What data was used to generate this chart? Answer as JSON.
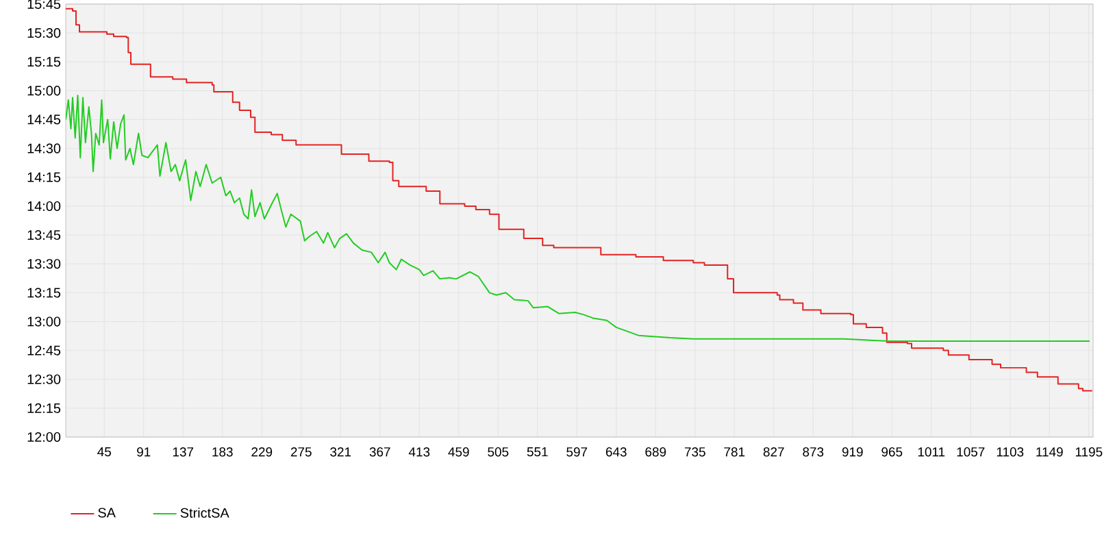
{
  "chart_data": {
    "type": "line",
    "xlim": [
      0,
      1200
    ],
    "ylim": [
      12,
      15.75
    ],
    "xticks": [
      45,
      91,
      137,
      183,
      229,
      275,
      321,
      367,
      413,
      459,
      505,
      551,
      597,
      643,
      689,
      735,
      781,
      827,
      873,
      919,
      965,
      1011,
      1057,
      1103,
      1149,
      1195
    ],
    "yticks": [
      {
        "value": 12,
        "label": "12:00"
      },
      {
        "value": 12.25,
        "label": "12:15"
      },
      {
        "value": 12.5,
        "label": "12:30"
      },
      {
        "value": 12.75,
        "label": "12:45"
      },
      {
        "value": 13,
        "label": "13:00"
      },
      {
        "value": 13.25,
        "label": "13:15"
      },
      {
        "value": 13.5,
        "label": "13:30"
      },
      {
        "value": 13.75,
        "label": "13:45"
      },
      {
        "value": 14,
        "label": "14:00"
      },
      {
        "value": 14.25,
        "label": "14:15"
      },
      {
        "value": 14.5,
        "label": "14:30"
      },
      {
        "value": 14.75,
        "label": "14:45"
      },
      {
        "value": 15,
        "label": "15:00"
      },
      {
        "value": 15.25,
        "label": "15:15"
      },
      {
        "value": 15.5,
        "label": "15:30"
      },
      {
        "value": 15.75,
        "label": "15:45"
      }
    ],
    "grid": true,
    "legend": "bottom left",
    "marker": "none",
    "line_style": "solid",
    "series": [
      {
        "name": "SA",
        "type": "step",
        "color": "#e32222",
        "x": [
          0,
          8,
          12,
          16,
          48,
          56,
          71,
          73,
          76,
          99,
          125,
          141,
          171,
          173,
          195,
          203,
          216,
          221,
          240,
          253,
          269,
          322,
          354,
          378,
          382,
          389,
          421,
          437,
          466,
          479,
          495,
          506,
          535,
          557,
          570,
          625,
          666,
          698,
          733,
          746,
          773,
          780,
          831,
          834,
          850,
          861,
          882,
          917,
          920,
          935,
          954,
          959,
          983,
          988,
          1025,
          1031,
          1055,
          1082,
          1092,
          1122,
          1135,
          1159,
          1183,
          1188,
          1199
        ],
        "values": [
          15.71,
          15.69,
          15.57,
          15.51,
          15.49,
          15.47,
          15.46,
          15.33,
          15.23,
          15.12,
          15.1,
          15.07,
          15.05,
          14.99,
          14.9,
          14.83,
          14.77,
          14.64,
          14.62,
          14.57,
          14.53,
          14.45,
          14.39,
          14.38,
          14.22,
          14.17,
          14.13,
          14.02,
          14,
          13.97,
          13.93,
          13.8,
          13.72,
          13.66,
          13.64,
          13.58,
          13.56,
          13.53,
          13.51,
          13.49,
          13.37,
          13.25,
          13.23,
          13.19,
          13.16,
          13.1,
          13.07,
          13.06,
          12.98,
          12.95,
          12.9,
          12.82,
          12.81,
          12.77,
          12.75,
          12.71,
          12.67,
          12.63,
          12.6,
          12.56,
          12.52,
          12.46,
          12.42,
          12.4,
          12.4
        ]
      },
      {
        "name": "StrictSA",
        "type": "line",
        "color": "#22cc22",
        "x": [
          0,
          3,
          6,
          8,
          11,
          14,
          17,
          20,
          23,
          27,
          30,
          32,
          35,
          39,
          42,
          44,
          49,
          52,
          56,
          60,
          64,
          68,
          70,
          75,
          79,
          85,
          89,
          96,
          107,
          110,
          117,
          123,
          128,
          133,
          140,
          146,
          152,
          157,
          164,
          171,
          181,
          187,
          192,
          197,
          203,
          208,
          213,
          217,
          221,
          227,
          232,
          240,
          247,
          251,
          257,
          263,
          274,
          279,
          285,
          293,
          301,
          306,
          314,
          320,
          328,
          336,
          346,
          357,
          365,
          373,
          378,
          386,
          392,
          402,
          413,
          418,
          429,
          437,
          448,
          456,
          472,
          482,
          495,
          503,
          514,
          524,
          540,
          546,
          563,
          576,
          595,
          605,
          616,
          632,
          643,
          669,
          706,
          733,
          776,
          829,
          909,
          962,
          1095,
          1196
        ],
        "values": [
          14.75,
          14.92,
          14.67,
          14.94,
          14.59,
          14.96,
          14.42,
          14.94,
          14.55,
          14.86,
          14.63,
          14.3,
          14.63,
          14.53,
          14.92,
          14.55,
          14.75,
          14.41,
          14.73,
          14.5,
          14.71,
          14.79,
          14.4,
          14.5,
          14.36,
          14.63,
          14.44,
          14.42,
          14.53,
          14.26,
          14.55,
          14.3,
          14.36,
          14.22,
          14.4,
          14.05,
          14.3,
          14.17,
          14.36,
          14.2,
          14.25,
          14.09,
          14.13,
          14.03,
          14.07,
          13.93,
          13.89,
          14.14,
          13.91,
          14.03,
          13.89,
          14.01,
          14.11,
          13.99,
          13.82,
          13.93,
          13.87,
          13.7,
          13.74,
          13.78,
          13.68,
          13.77,
          13.64,
          13.72,
          13.76,
          13.68,
          13.62,
          13.6,
          13.51,
          13.6,
          13.51,
          13.45,
          13.54,
          13.49,
          13.45,
          13.4,
          13.44,
          13.37,
          13.38,
          13.37,
          13.43,
          13.39,
          13.25,
          13.23,
          13.25,
          13.19,
          13.18,
          13.12,
          13.13,
          13.07,
          13.08,
          13.06,
          13.03,
          13.01,
          12.95,
          12.88,
          12.86,
          12.85,
          12.85,
          12.85,
          12.85,
          12.83,
          12.83,
          12.83
        ]
      }
    ]
  }
}
